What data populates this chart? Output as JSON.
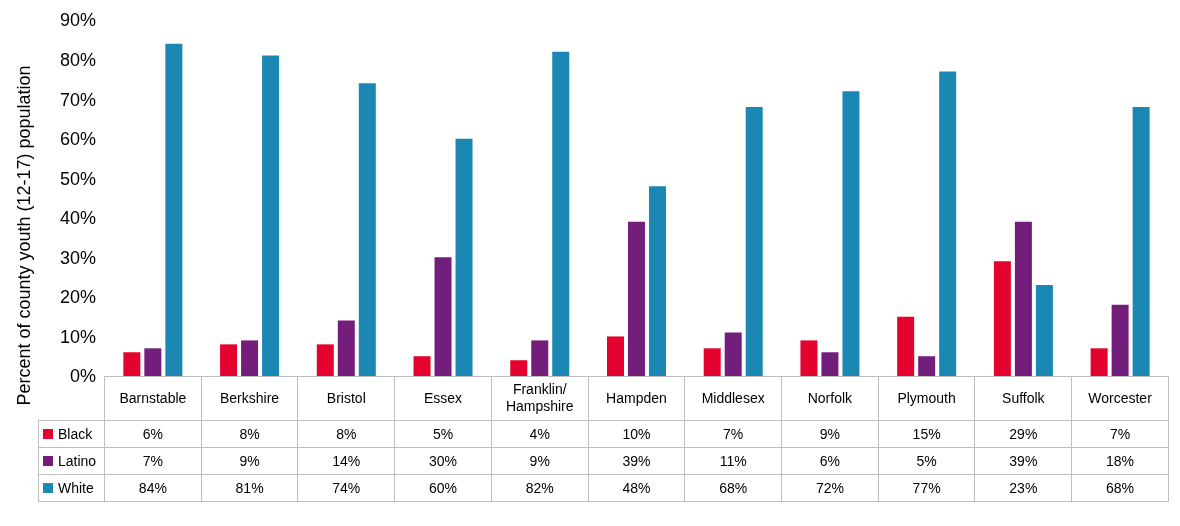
{
  "chart_data": {
    "type": "bar",
    "ylabel": "Percent of county youth (12-17) population",
    "categories": [
      "Barnstable",
      "Berkshire",
      "Bristol",
      "Essex",
      "Franklin/ Hampshire",
      "Hampden",
      "Middlesex",
      "Norfolk",
      "Plymouth",
      "Suffolk",
      "Worcester"
    ],
    "series": [
      {
        "name": "Black",
        "color": "#e4032e",
        "values": [
          6,
          8,
          8,
          5,
          4,
          10,
          7,
          9,
          15,
          29,
          7
        ],
        "value_labels": [
          "6%",
          "8%",
          "8%",
          "5%",
          "4%",
          "10%",
          "7%",
          "9%",
          "15%",
          "29%",
          "7%"
        ]
      },
      {
        "name": "Latino",
        "color": "#741e7c",
        "values": [
          7,
          9,
          14,
          30,
          9,
          39,
          11,
          6,
          5,
          39,
          18
        ],
        "value_labels": [
          "7%",
          "9%",
          "14%",
          "30%",
          "9%",
          "39%",
          "11%",
          "6%",
          "5%",
          "39%",
          "18%"
        ]
      },
      {
        "name": "White",
        "color": "#1a88b2",
        "values": [
          84,
          81,
          74,
          60,
          82,
          48,
          68,
          72,
          77,
          23,
          68
        ],
        "value_labels": [
          "84%",
          "81%",
          "74%",
          "60%",
          "82%",
          "48%",
          "68%",
          "72%",
          "77%",
          "23%",
          "68%"
        ]
      }
    ],
    "ylim": [
      0,
      90
    ],
    "yticks": [
      {
        "value": 0,
        "label": "0%"
      },
      {
        "value": 10,
        "label": "10%"
      },
      {
        "value": 20,
        "label": "20%"
      },
      {
        "value": 30,
        "label": "30%"
      },
      {
        "value": 40,
        "label": "40%"
      },
      {
        "value": 50,
        "label": "50%"
      },
      {
        "value": 60,
        "label": "60%"
      },
      {
        "value": 70,
        "label": "70%"
      },
      {
        "value": 80,
        "label": "80%"
      },
      {
        "value": 90,
        "label": "90%"
      }
    ],
    "legend": "bottom left"
  }
}
